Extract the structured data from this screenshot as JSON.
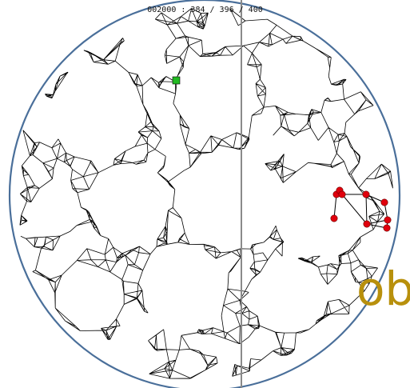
{
  "status": {
    "text": "002000 : 384 / 396 / 400"
  },
  "overlay": {
    "text": "ob",
    "color": "#b8900c"
  },
  "colors": {
    "boundary_circle": "#4a6f9a",
    "mesh": "#000000",
    "divider_line": "#8a8a8a",
    "marked_nodes": "#e0000d",
    "start_node": "#22bb22"
  },
  "icons": {
    "start_node": "green-square-marker",
    "marked_nodes": "red-dot-marker"
  }
}
